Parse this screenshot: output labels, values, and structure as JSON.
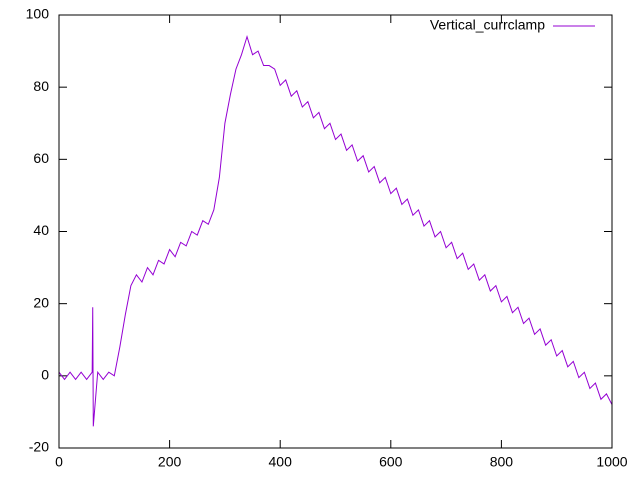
{
  "chart_data": {
    "type": "line",
    "x": [
      0,
      10,
      20,
      30,
      40,
      50,
      60,
      61,
      62,
      70,
      80,
      90,
      100,
      110,
      120,
      130,
      140,
      150,
      160,
      170,
      180,
      190,
      200,
      210,
      220,
      230,
      240,
      250,
      260,
      270,
      280,
      290,
      300,
      310,
      320,
      330,
      340,
      350,
      360,
      370,
      380,
      390,
      400,
      410,
      420,
      430,
      440,
      450,
      460,
      470,
      480,
      490,
      500,
      510,
      520,
      530,
      540,
      550,
      560,
      570,
      580,
      590,
      600,
      610,
      620,
      630,
      640,
      650,
      660,
      670,
      680,
      690,
      700,
      710,
      720,
      730,
      740,
      750,
      760,
      770,
      780,
      790,
      800,
      810,
      820,
      830,
      840,
      850,
      860,
      870,
      880,
      890,
      900,
      910,
      920,
      930,
      940,
      950,
      960,
      970,
      980,
      990,
      1000
    ],
    "series": [
      {
        "name": "Vertical_currclamp",
        "color": "#9400d3",
        "values": [
          1,
          -1,
          1,
          -1,
          1,
          -1,
          1,
          19,
          -14,
          1,
          -1,
          1,
          0,
          8,
          17,
          25,
          28,
          26,
          30,
          28,
          32,
          31,
          35,
          33,
          37,
          36,
          40,
          39,
          43,
          42,
          46,
          55,
          70,
          78,
          85,
          89,
          94,
          89,
          90,
          86,
          86,
          85,
          80.5,
          82,
          77.5,
          79,
          74.5,
          76,
          71.5,
          73,
          68.5,
          70,
          65.5,
          67,
          62.5,
          64,
          59.5,
          61,
          56.5,
          58,
          53.5,
          55,
          50.5,
          52,
          47.5,
          49,
          44.5,
          46,
          41.5,
          43,
          38.5,
          40,
          35.5,
          37,
          32.5,
          34,
          29.5,
          31,
          26.5,
          28,
          23.5,
          25,
          20.5,
          22,
          17.5,
          19,
          14.5,
          16,
          11.5,
          13,
          8.5,
          10,
          5.5,
          7,
          2.5,
          4,
          -0.5,
          1,
          -3.5,
          -2,
          -6.5,
          -5,
          -8
        ]
      }
    ],
    "xlim": [
      0,
      1000
    ],
    "xticks": [
      0,
      200,
      400,
      600,
      800,
      1000
    ],
    "ylim": [
      -20,
      100
    ],
    "yticks": [
      -20,
      0,
      20,
      40,
      60,
      80,
      100
    ],
    "legend": "top-right"
  }
}
